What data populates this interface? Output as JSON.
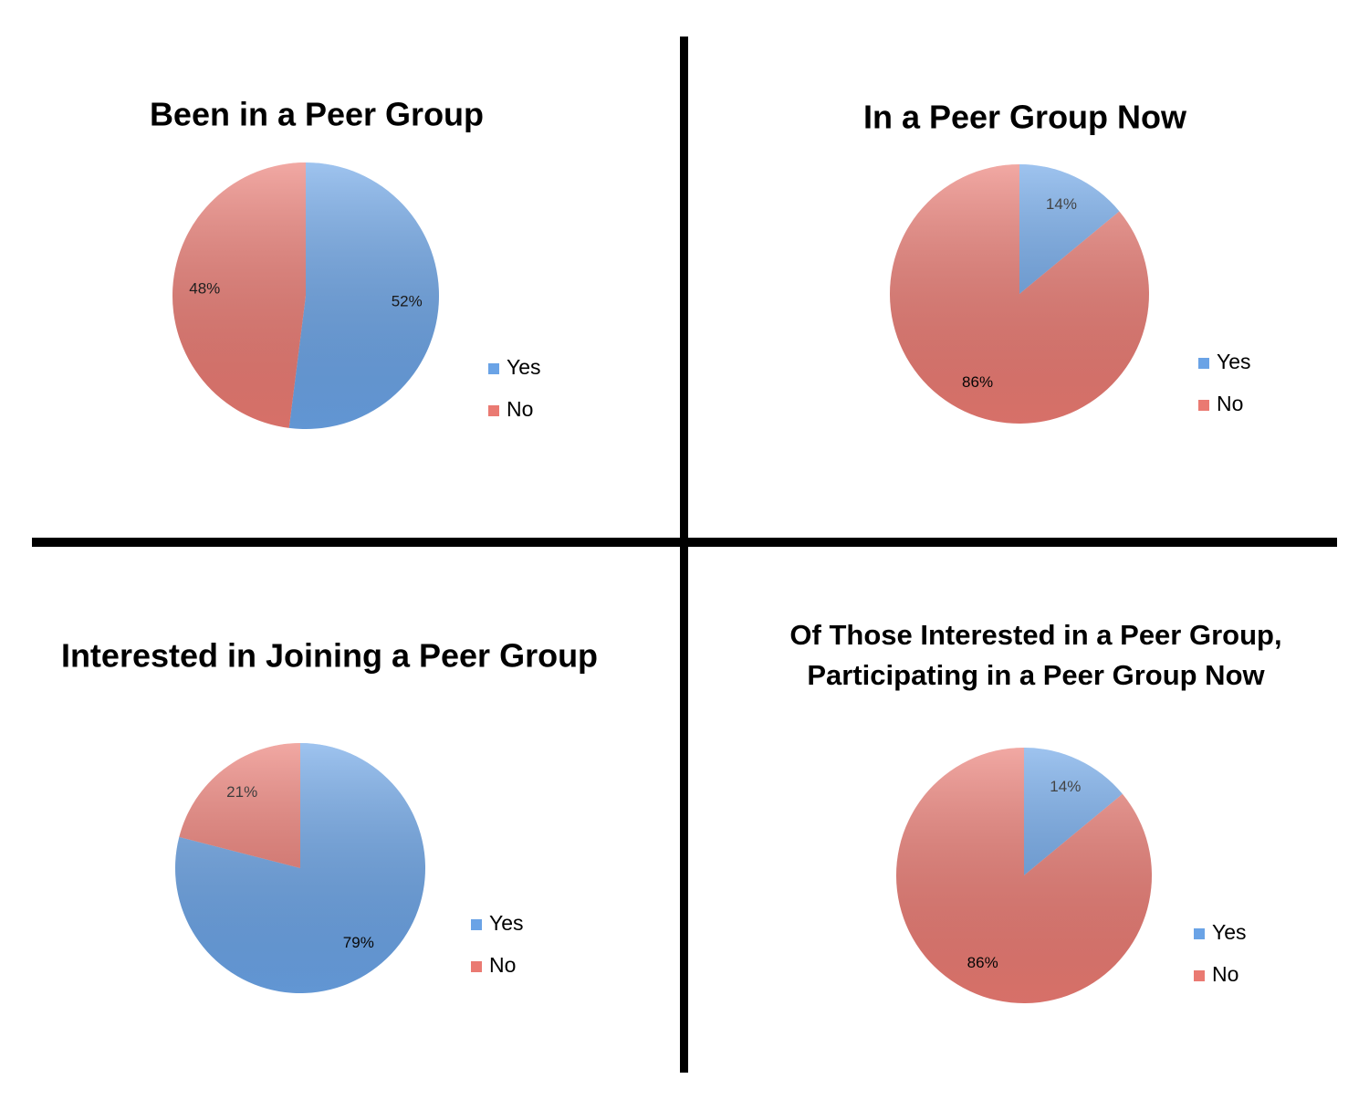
{
  "chart_data": [
    {
      "type": "pie",
      "title": "Been in a Peer Group",
      "categories": [
        "Yes",
        "No"
      ],
      "values": [
        52,
        48
      ],
      "value_labels": [
        "52%",
        "48%"
      ],
      "colors": [
        "#6aa3e6",
        "#ea7a72"
      ],
      "legend": "right"
    },
    {
      "type": "pie",
      "title": "In a Peer Group Now",
      "categories": [
        "Yes",
        "No"
      ],
      "values": [
        14,
        86
      ],
      "value_labels": [
        "14%",
        "86%"
      ],
      "colors": [
        "#6aa3e6",
        "#ea7a72"
      ],
      "legend": "right"
    },
    {
      "type": "pie",
      "title": "Interested in Joining a Peer Group",
      "categories": [
        "Yes",
        "No"
      ],
      "values": [
        79,
        21
      ],
      "value_labels": [
        "79%",
        "21%"
      ],
      "colors": [
        "#6aa3e6",
        "#ea7a72"
      ],
      "legend": "right"
    },
    {
      "type": "pie",
      "title": [
        "Of Those Interested in a Peer Group,",
        "Participating in a Peer Group Now"
      ],
      "categories": [
        "Yes",
        "No"
      ],
      "values": [
        14,
        86
      ],
      "value_labels": [
        "14%",
        "86%"
      ],
      "colors": [
        "#6aa3e6",
        "#ea7a72"
      ],
      "legend": "right"
    }
  ]
}
